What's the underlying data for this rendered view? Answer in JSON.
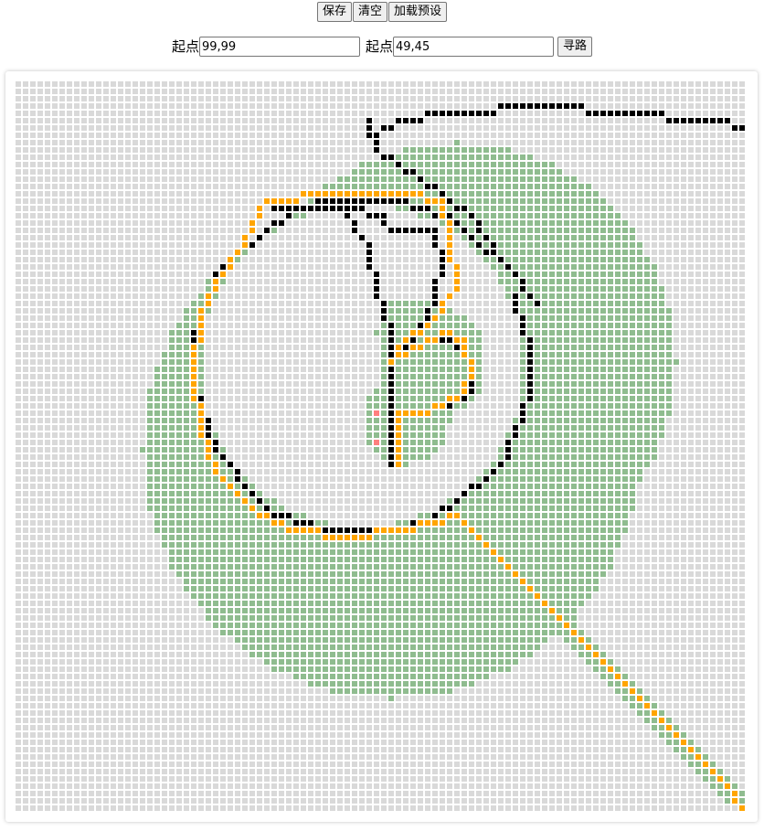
{
  "toolbar": {
    "save_label": "保存",
    "clear_label": "清空",
    "load_preset_label": "加载预设"
  },
  "controls": {
    "start_label": "起点",
    "start_value": "99,99",
    "end_label": "起点",
    "end_value": "49,45",
    "search_label": "寻路"
  },
  "grid": {
    "cols": 100,
    "rows": 100,
    "colors": {
      "empty": "#d9d9d9",
      "visited": "#8fbc8f",
      "wall": "#000000",
      "path": "#ffa500",
      "endpoint": "#ff7f7f"
    }
  }
}
